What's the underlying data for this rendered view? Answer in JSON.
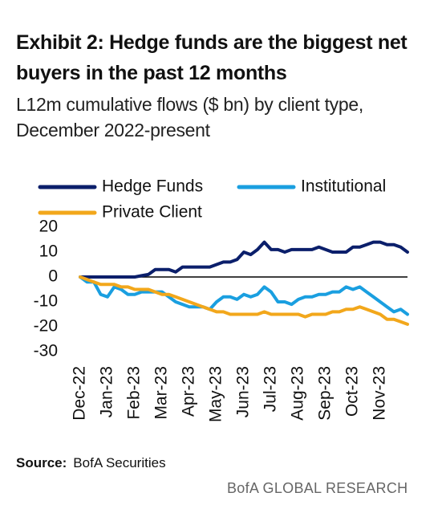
{
  "title": "Exhibit 2: Hedge funds are the biggest net buyers in the past 12 months",
  "subtitle": "L12m cumulative flows ($ bn) by client type, December 2022-present",
  "source_label": "Source:",
  "source": "BofA Securities",
  "footer": "BofA GLOBAL RESEARCH",
  "chart_data": {
    "type": "line",
    "categories": [
      "Dec-22",
      null,
      null,
      null,
      "Jan-23",
      null,
      null,
      null,
      "Feb-23",
      null,
      null,
      null,
      "Mar-23",
      null,
      null,
      null,
      "Apr-23",
      null,
      null,
      null,
      "May-23",
      null,
      null,
      null,
      "Jun-23",
      null,
      null,
      null,
      "Jul-23",
      null,
      null,
      null,
      "Aug-23",
      null,
      null,
      null,
      "Sep-23",
      null,
      null,
      null,
      "Oct-23",
      null,
      null,
      null,
      "Nov-23",
      null,
      null,
      null,
      null
    ],
    "series": [
      {
        "name": "Hedge Funds",
        "color": "#0b1f6b",
        "values": [
          0,
          0,
          0,
          0,
          0,
          0,
          0,
          0,
          0,
          0.5,
          1,
          3,
          3,
          3,
          2,
          4,
          4,
          4,
          4,
          4,
          5,
          6,
          6,
          7,
          10,
          9,
          11,
          14,
          11,
          11,
          10,
          11,
          11,
          11,
          11,
          12,
          11,
          10,
          10,
          10,
          12,
          12,
          13,
          14,
          14,
          13,
          13,
          12,
          10
        ]
      },
      {
        "name": "Institutional",
        "color": "#1a9fe0",
        "values": [
          0,
          -2,
          -2,
          -7,
          -8,
          -4,
          -5,
          -7,
          -7,
          -6,
          -6,
          -6,
          -6,
          -8,
          -10,
          -11,
          -12,
          -12,
          -12,
          -13,
          -10,
          -8,
          -8,
          -9,
          -7,
          -8,
          -7,
          -4,
          -6,
          -10,
          -10,
          -11,
          -9,
          -8,
          -8,
          -7,
          -7,
          -6,
          -6,
          -4,
          -5,
          -4,
          -6,
          -8,
          -10,
          -12,
          -14,
          -13,
          -15
        ]
      },
      {
        "name": "Private Client",
        "color": "#f2a71b",
        "values": [
          0,
          -1,
          -2,
          -3,
          -3,
          -3,
          -4,
          -4,
          -5,
          -5,
          -5,
          -6,
          -7,
          -7,
          -8,
          -9,
          -10,
          -11,
          -12,
          -13,
          -14,
          -14,
          -15,
          -15,
          -15,
          -15,
          -15,
          -14,
          -15,
          -15,
          -15,
          -15,
          -15,
          -16,
          -15,
          -15,
          -15,
          -14,
          -14,
          -13,
          -13,
          -12,
          -13,
          -14,
          -15,
          -17,
          -17,
          -18,
          -19
        ]
      }
    ],
    "ylim": [
      -30,
      20
    ],
    "yticks": [
      20,
      10,
      0,
      -10,
      -20,
      -30
    ]
  }
}
